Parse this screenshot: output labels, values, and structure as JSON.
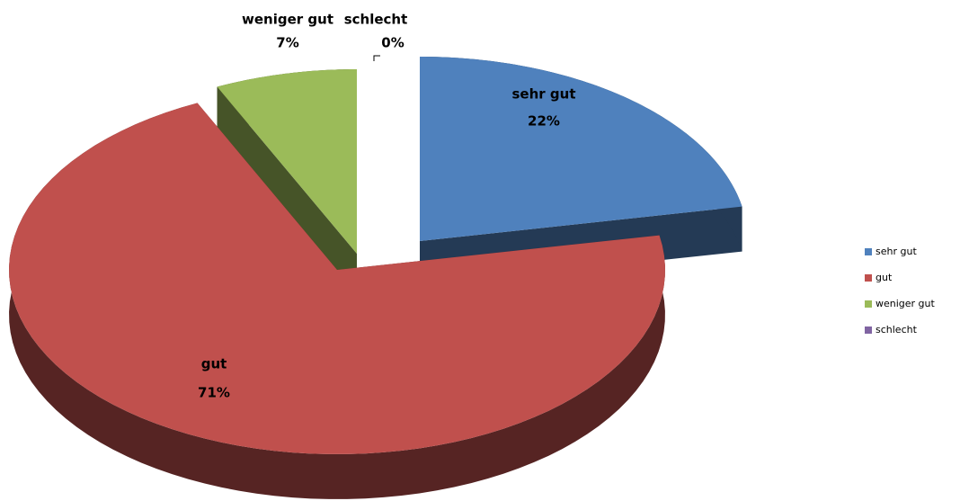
{
  "chart_data": {
    "type": "pie",
    "categories": [
      "sehr gut",
      "gut",
      "weniger gut",
      "schlecht"
    ],
    "values": [
      22,
      71,
      7,
      0
    ],
    "value_labels": [
      "22%",
      "71%",
      "7%",
      "0%"
    ],
    "colors": [
      "#4f81bd",
      "#c0504d",
      "#9bbb59",
      "#8064a2"
    ],
    "legend": "right"
  }
}
